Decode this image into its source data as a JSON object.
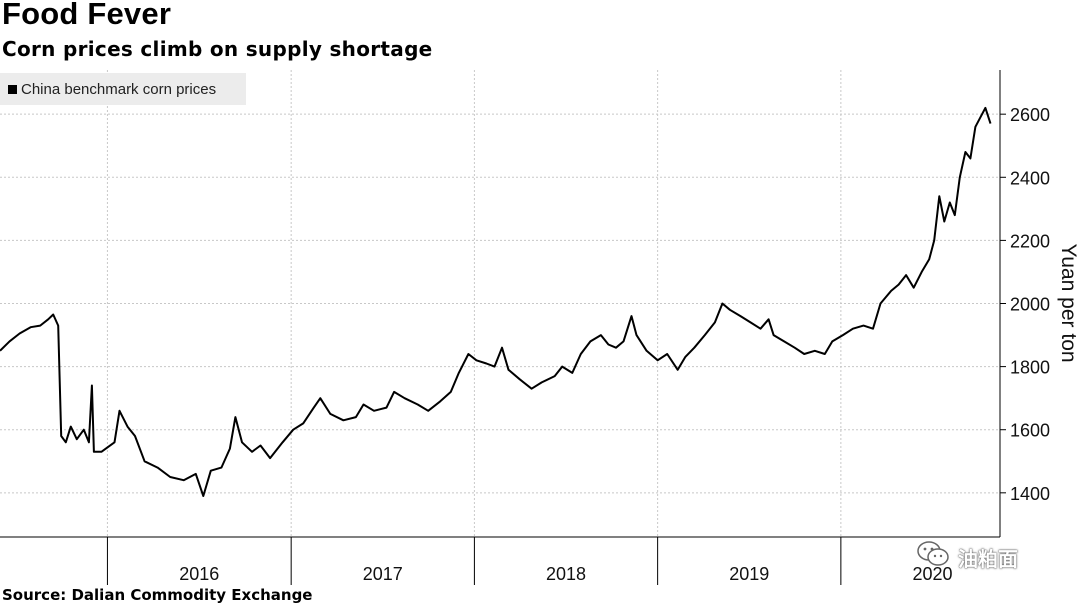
{
  "chart_data": {
    "type": "line",
    "title": "Food Fever",
    "subtitle": "Corn prices climb on supply shortage",
    "source": "Source: Dalian Commodity Exchange",
    "ylabel": "Yuan per ton",
    "ylim": [
      1260,
      2740
    ],
    "yticks": [
      1400,
      1600,
      1800,
      2000,
      2200,
      2400,
      2600
    ],
    "y_axis_position": "right",
    "grid": true,
    "legend_placement": "top-left",
    "x_tick_labels": [
      "2016",
      "2017",
      "2018",
      "2019",
      "2020"
    ],
    "series": [
      {
        "name": "China benchmark corn prices",
        "color": "#000000",
        "points": [
          [
            "2015-06-01",
            1850
          ],
          [
            "2015-06-20",
            1880
          ],
          [
            "2015-07-10",
            1905
          ],
          [
            "2015-08-01",
            1925
          ],
          [
            "2015-08-20",
            1930
          ],
          [
            "2015-09-05",
            1950
          ],
          [
            "2015-09-15",
            1965
          ],
          [
            "2015-09-25",
            1930
          ],
          [
            "2015-10-01",
            1580
          ],
          [
            "2015-10-10",
            1560
          ],
          [
            "2015-10-20",
            1610
          ],
          [
            "2015-11-01",
            1570
          ],
          [
            "2015-11-15",
            1600
          ],
          [
            "2015-11-25",
            1560
          ],
          [
            "2015-12-01",
            1740
          ],
          [
            "2015-12-05",
            1530
          ],
          [
            "2015-12-20",
            1530
          ],
          [
            "2016-01-15",
            1560
          ],
          [
            "2016-01-25",
            1660
          ],
          [
            "2016-02-10",
            1610
          ],
          [
            "2016-02-25",
            1580
          ],
          [
            "2016-03-15",
            1500
          ],
          [
            "2016-04-10",
            1480
          ],
          [
            "2016-05-05",
            1450
          ],
          [
            "2016-06-01",
            1440
          ],
          [
            "2016-06-25",
            1460
          ],
          [
            "2016-07-10",
            1390
          ],
          [
            "2016-07-25",
            1470
          ],
          [
            "2016-08-15",
            1480
          ],
          [
            "2016-09-01",
            1540
          ],
          [
            "2016-09-12",
            1640
          ],
          [
            "2016-09-25",
            1560
          ],
          [
            "2016-10-15",
            1530
          ],
          [
            "2016-11-01",
            1550
          ],
          [
            "2016-11-20",
            1510
          ],
          [
            "2016-12-15",
            1560
          ],
          [
            "2017-01-05",
            1600
          ],
          [
            "2017-01-25",
            1620
          ],
          [
            "2017-02-15",
            1670
          ],
          [
            "2017-02-28",
            1700
          ],
          [
            "2017-03-20",
            1650
          ],
          [
            "2017-04-15",
            1630
          ],
          [
            "2017-05-10",
            1640
          ],
          [
            "2017-05-25",
            1680
          ],
          [
            "2017-06-15",
            1660
          ],
          [
            "2017-07-10",
            1670
          ],
          [
            "2017-07-25",
            1720
          ],
          [
            "2017-08-15",
            1700
          ],
          [
            "2017-09-10",
            1680
          ],
          [
            "2017-10-01",
            1660
          ],
          [
            "2017-10-25",
            1690
          ],
          [
            "2017-11-15",
            1720
          ],
          [
            "2017-12-01",
            1780
          ],
          [
            "2017-12-20",
            1840
          ],
          [
            "2018-01-05",
            1820
          ],
          [
            "2018-01-25",
            1810
          ],
          [
            "2018-02-10",
            1800
          ],
          [
            "2018-02-25",
            1860
          ],
          [
            "2018-03-10",
            1790
          ],
          [
            "2018-04-01",
            1760
          ],
          [
            "2018-04-25",
            1730
          ],
          [
            "2018-05-15",
            1750
          ],
          [
            "2018-06-10",
            1770
          ],
          [
            "2018-06-25",
            1800
          ],
          [
            "2018-07-15",
            1780
          ],
          [
            "2018-08-01",
            1840
          ],
          [
            "2018-08-20",
            1880
          ],
          [
            "2018-09-10",
            1900
          ],
          [
            "2018-09-25",
            1870
          ],
          [
            "2018-10-10",
            1860
          ],
          [
            "2018-10-25",
            1880
          ],
          [
            "2018-11-10",
            1960
          ],
          [
            "2018-11-20",
            1900
          ],
          [
            "2018-12-10",
            1850
          ],
          [
            "2019-01-01",
            1820
          ],
          [
            "2019-01-20",
            1840
          ],
          [
            "2019-02-10",
            1790
          ],
          [
            "2019-02-25",
            1830
          ],
          [
            "2019-03-15",
            1860
          ],
          [
            "2019-04-05",
            1900
          ],
          [
            "2019-04-25",
            1940
          ],
          [
            "2019-05-10",
            2000
          ],
          [
            "2019-05-25",
            1980
          ],
          [
            "2019-06-15",
            1960
          ],
          [
            "2019-07-05",
            1940
          ],
          [
            "2019-07-25",
            1920
          ],
          [
            "2019-08-10",
            1950
          ],
          [
            "2019-08-20",
            1900
          ],
          [
            "2019-09-10",
            1880
          ],
          [
            "2019-10-01",
            1860
          ],
          [
            "2019-10-20",
            1840
          ],
          [
            "2019-11-10",
            1850
          ],
          [
            "2019-11-30",
            1840
          ],
          [
            "2019-12-15",
            1880
          ],
          [
            "2020-01-05",
            1900
          ],
          [
            "2020-01-25",
            1920
          ],
          [
            "2020-02-15",
            1930
          ],
          [
            "2020-03-05",
            1920
          ],
          [
            "2020-03-20",
            2000
          ],
          [
            "2020-04-10",
            2040
          ],
          [
            "2020-04-25",
            2060
          ],
          [
            "2020-05-10",
            2090
          ],
          [
            "2020-05-25",
            2050
          ],
          [
            "2020-06-10",
            2100
          ],
          [
            "2020-06-25",
            2140
          ],
          [
            "2020-07-05",
            2200
          ],
          [
            "2020-07-15",
            2340
          ],
          [
            "2020-07-25",
            2260
          ],
          [
            "2020-08-05",
            2320
          ],
          [
            "2020-08-15",
            2280
          ],
          [
            "2020-08-25",
            2400
          ],
          [
            "2020-09-05",
            2480
          ],
          [
            "2020-09-15",
            2460
          ],
          [
            "2020-09-25",
            2560
          ],
          [
            "2020-10-05",
            2590
          ],
          [
            "2020-10-15",
            2620
          ],
          [
            "2020-10-25",
            2570
          ]
        ]
      }
    ]
  },
  "watermark": {
    "icon": "wechat-icon",
    "text": "油粕面"
  }
}
